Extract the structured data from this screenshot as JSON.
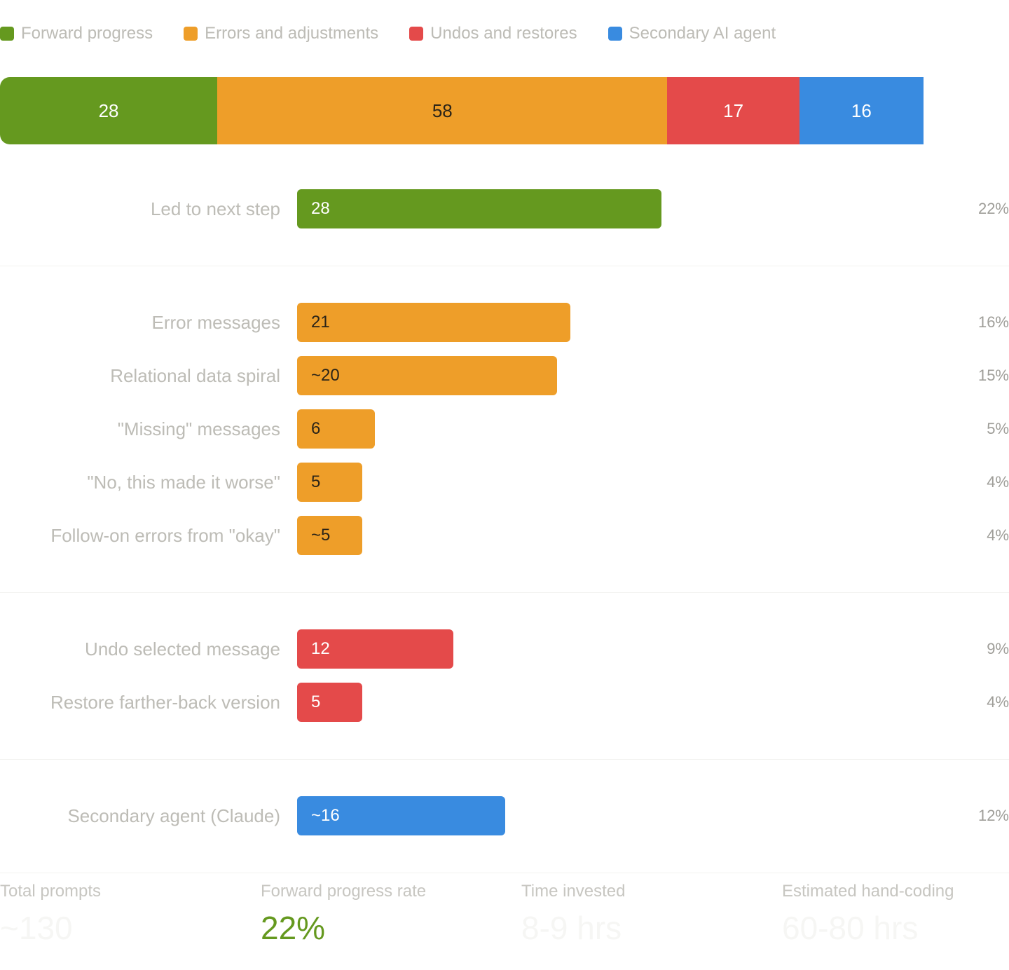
{
  "colors": {
    "forward": "#65991f",
    "errors": "#ee9e29",
    "undos": "#e44a4a",
    "secondary": "#398be0",
    "highlight_value": "#65991f"
  },
  "legend": [
    {
      "label": "Forward progress",
      "group": "forward"
    },
    {
      "label": "Errors and adjustments",
      "group": "errors"
    },
    {
      "label": "Undos and restores",
      "group": "undos"
    },
    {
      "label": "Secondary AI agent",
      "group": "secondary"
    }
  ],
  "chart_data": [
    {
      "type": "bar",
      "orientation": "horizontal-stacked",
      "categories": [
        "Forward progress",
        "Errors and adjustments",
        "Undos and restores",
        "Secondary AI agent"
      ],
      "series": [
        {
          "name": "Forward progress",
          "group": "forward",
          "value": 28,
          "label": "28"
        },
        {
          "name": "Errors and adjustments",
          "group": "errors",
          "value": 58,
          "label": "58"
        },
        {
          "name": "Undos and restores",
          "group": "undos",
          "value": 17,
          "label": "17"
        },
        {
          "name": "Secondary AI agent",
          "group": "secondary",
          "value": 16,
          "label": "16"
        }
      ]
    },
    {
      "type": "bar",
      "orientation": "horizontal",
      "xlim": [
        0,
        28
      ],
      "groups": [
        {
          "group": "forward",
          "rows": [
            {
              "label": "Led to next step",
              "value": 28,
              "value_label": "28",
              "percent": "22%"
            }
          ]
        },
        {
          "group": "errors",
          "rows": [
            {
              "label": "Error messages",
              "value": 21,
              "value_label": "21",
              "percent": "16%"
            },
            {
              "label": "Relational data spiral",
              "value": 20,
              "value_label": "~20",
              "percent": "15%"
            },
            {
              "label": "\"Missing\" messages",
              "value": 6,
              "value_label": "6",
              "percent": "5%"
            },
            {
              "label": "\"No, this made it worse\"",
              "value": 5,
              "value_label": "5",
              "percent": "4%"
            },
            {
              "label": "Follow-on errors from \"okay\"",
              "value": 5,
              "value_label": "~5",
              "percent": "4%"
            }
          ]
        },
        {
          "group": "undos",
          "rows": [
            {
              "label": "Undo selected message",
              "value": 12,
              "value_label": "12",
              "percent": "9%"
            },
            {
              "label": "Restore farther-back version",
              "value": 5,
              "value_label": "5",
              "percent": "4%"
            }
          ]
        },
        {
          "group": "secondary",
          "rows": [
            {
              "label": "Secondary agent (Claude)",
              "value": 16,
              "value_label": "~16",
              "percent": "12%"
            }
          ]
        }
      ]
    }
  ],
  "stats": [
    {
      "label": "Total prompts",
      "value": "~130",
      "highlight": false
    },
    {
      "label": "Forward progress rate",
      "value": "22%",
      "highlight": true
    },
    {
      "label": "Time invested",
      "value": "8-9 hrs",
      "highlight": false
    },
    {
      "label": "Estimated hand-coding",
      "value": "60-80 hrs",
      "highlight": false
    }
  ]
}
